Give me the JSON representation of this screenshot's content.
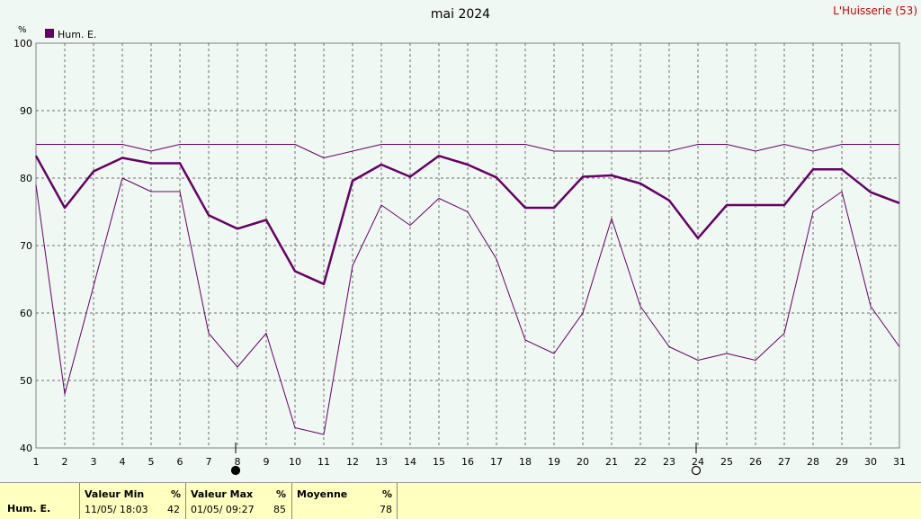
{
  "title": "mai 2024",
  "station": "L'Huisserie (53)",
  "unit": "%",
  "legend": {
    "label": "Hum. E.",
    "color": "#660066"
  },
  "chart_data": {
    "type": "line",
    "title": "mai 2024",
    "x": [
      1,
      2,
      3,
      4,
      5,
      6,
      7,
      8,
      9,
      10,
      11,
      12,
      13,
      14,
      15,
      16,
      17,
      18,
      19,
      20,
      21,
      22,
      23,
      24,
      25,
      26,
      27,
      28,
      29,
      30,
      31
    ],
    "ylim": [
      40,
      100
    ],
    "yticks": [
      40,
      50,
      60,
      70,
      80,
      90,
      100
    ],
    "ylabel": "%",
    "grid": true,
    "legend_position": "top-left",
    "series": [
      {
        "name": "Hum. E.",
        "role": "mean",
        "color": "#660066",
        "values": [
          83.3,
          75.6,
          81.0,
          83.0,
          82.2,
          82.2,
          74.5,
          72.5,
          73.8,
          66.2,
          64.3,
          79.6,
          82.0,
          80.2,
          83.3,
          82.0,
          80.1,
          75.6,
          75.6,
          80.2,
          80.4,
          79.2,
          76.7,
          71.1,
          76.0,
          76.0,
          76.0,
          81.3,
          81.3,
          77.9,
          76.3
        ]
      },
      {
        "role": "max",
        "color": "#660066",
        "values": [
          85,
          85,
          85,
          85,
          84,
          85,
          85,
          85,
          85,
          85,
          83,
          84,
          85,
          85,
          85,
          85,
          85,
          85,
          84,
          84,
          84,
          84,
          84,
          85,
          85,
          84,
          85,
          84,
          85,
          85,
          85
        ]
      },
      {
        "role": "min",
        "color": "#660066",
        "values": [
          79,
          48,
          64,
          80,
          78,
          78,
          57,
          52,
          57,
          43,
          42,
          67,
          76,
          73,
          77,
          75,
          68,
          56,
          54,
          60,
          74,
          61,
          55,
          53,
          54,
          53,
          57,
          75,
          78,
          61,
          55
        ]
      }
    ],
    "moon_phases": [
      {
        "day": 8,
        "phase": "new"
      },
      {
        "day": 24,
        "phase": "full"
      }
    ]
  },
  "stats": {
    "row_label": "Hum. E.",
    "min_header": "Valeur Min",
    "min_unit": "%",
    "min_date": "11/05/ 18:03",
    "min_value": "42",
    "max_header": "Valeur Max",
    "max_unit": "%",
    "max_date": "01/05/ 09:27",
    "max_value": "85",
    "avg_header": "Moyenne",
    "avg_unit": "%",
    "avg_value": "78"
  }
}
